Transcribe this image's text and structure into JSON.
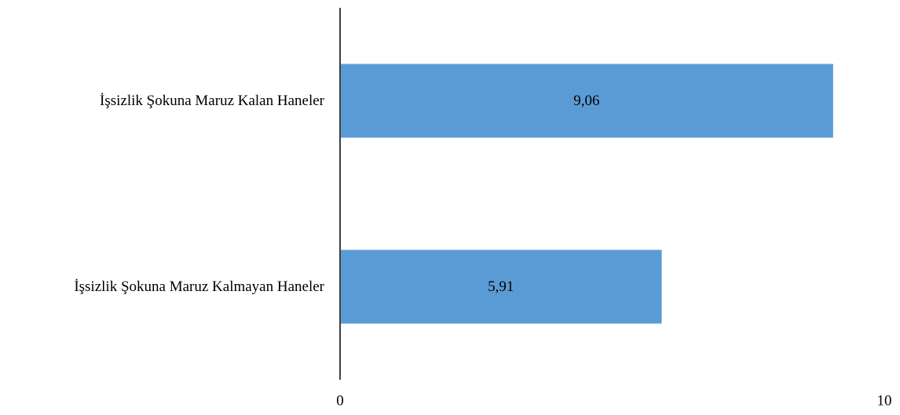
{
  "chart_data": {
    "type": "bar",
    "orientation": "horizontal",
    "categories": [
      "İşsizlik Şokuna Maruz Kalan Haneler",
      "İşsizlik Şokuna Maruz Kalmayan Haneler"
    ],
    "values": [
      9.06,
      5.91
    ],
    "data_labels": [
      "9,06",
      "5,91"
    ],
    "xlim": [
      0,
      10
    ],
    "x_ticks": [
      "0",
      "10"
    ],
    "grid": false,
    "legend": "none",
    "bar_color": "#5b9bd5",
    "axis_color": "#000000"
  }
}
